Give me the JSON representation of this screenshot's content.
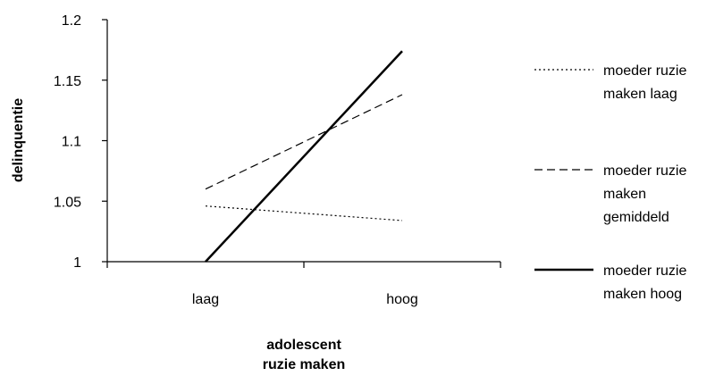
{
  "chart_data": {
    "type": "line",
    "title": "",
    "xlabel": [
      "adolescent",
      "ruzie maken"
    ],
    "ylabel": "delinquentie",
    "categories": [
      "laag",
      "hoog"
    ],
    "ylim": [
      1,
      1.2
    ],
    "yticks": [
      "1",
      "1.05",
      "1.1",
      "1.15",
      "1.2"
    ],
    "grid": false,
    "legend_position": "right",
    "series": [
      {
        "name": "moeder ruzie maken laag",
        "label_lines": [
          "moeder ruzie",
          "maken laag"
        ],
        "style": "dotted",
        "values": [
          1.046,
          1.034
        ]
      },
      {
        "name": "moeder ruzie maken gemiddeld",
        "label_lines": [
          "moeder ruzie",
          "maken",
          "gemiddeld"
        ],
        "style": "dashed",
        "values": [
          1.06,
          1.138
        ]
      },
      {
        "name": "moeder ruzie maken hoog",
        "label_lines": [
          "moeder ruzie",
          "maken hoog"
        ],
        "style": "solid",
        "values": [
          1.0,
          1.174
        ]
      }
    ],
    "colors": {
      "line": "#000000",
      "axis": "#000000"
    }
  }
}
